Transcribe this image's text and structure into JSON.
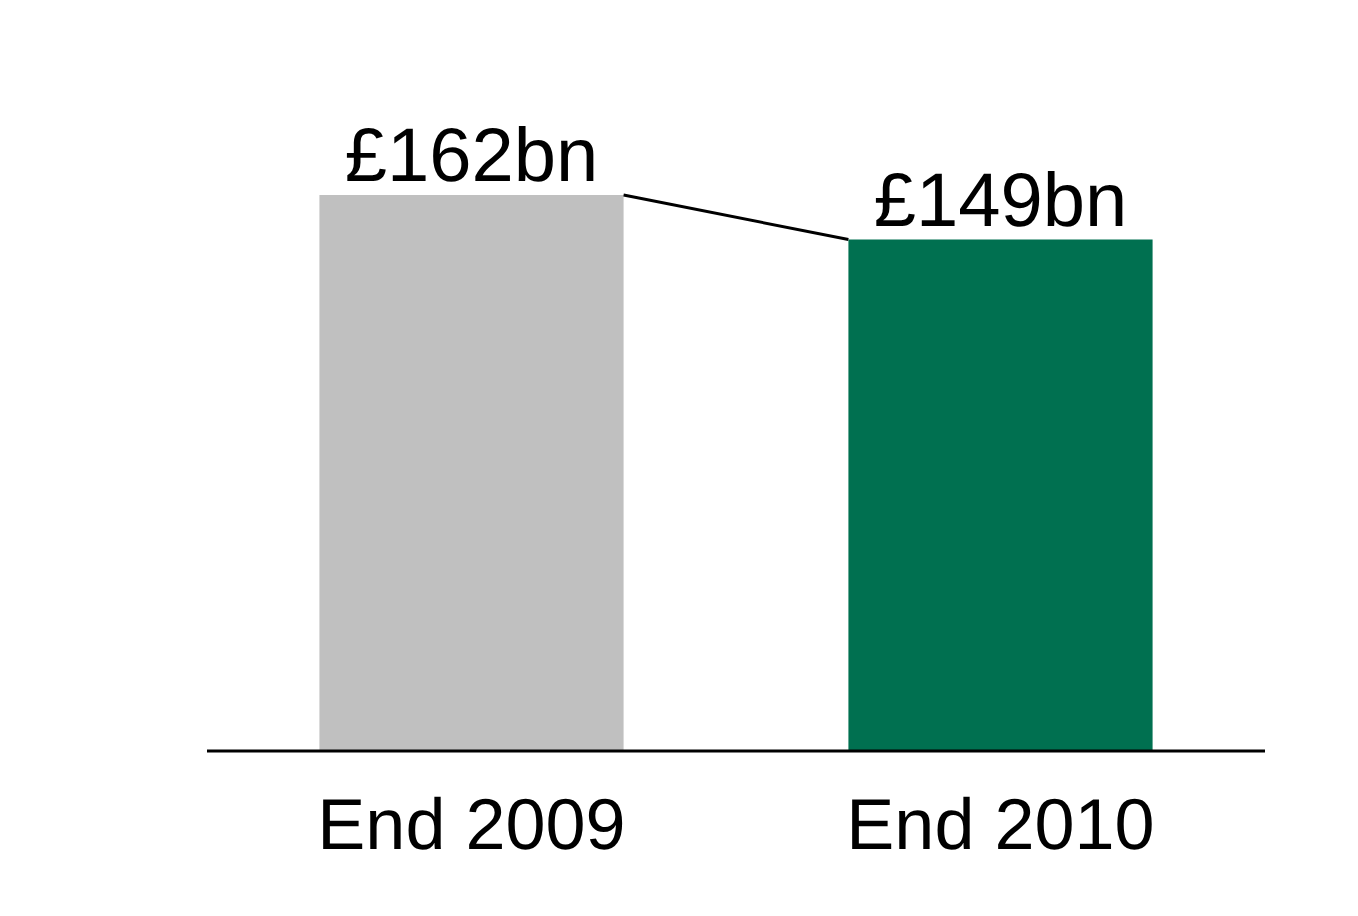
{
  "chart_data": {
    "type": "bar",
    "categories": [
      "End 2009",
      "End 2010"
    ],
    "series": [
      {
        "colors": [
          "#c0c0c0",
          "#007050"
        ],
        "values": [
          162,
          149
        ],
        "value_labels": [
          "£162bn",
          "£149bn"
        ]
      }
    ]
  }
}
